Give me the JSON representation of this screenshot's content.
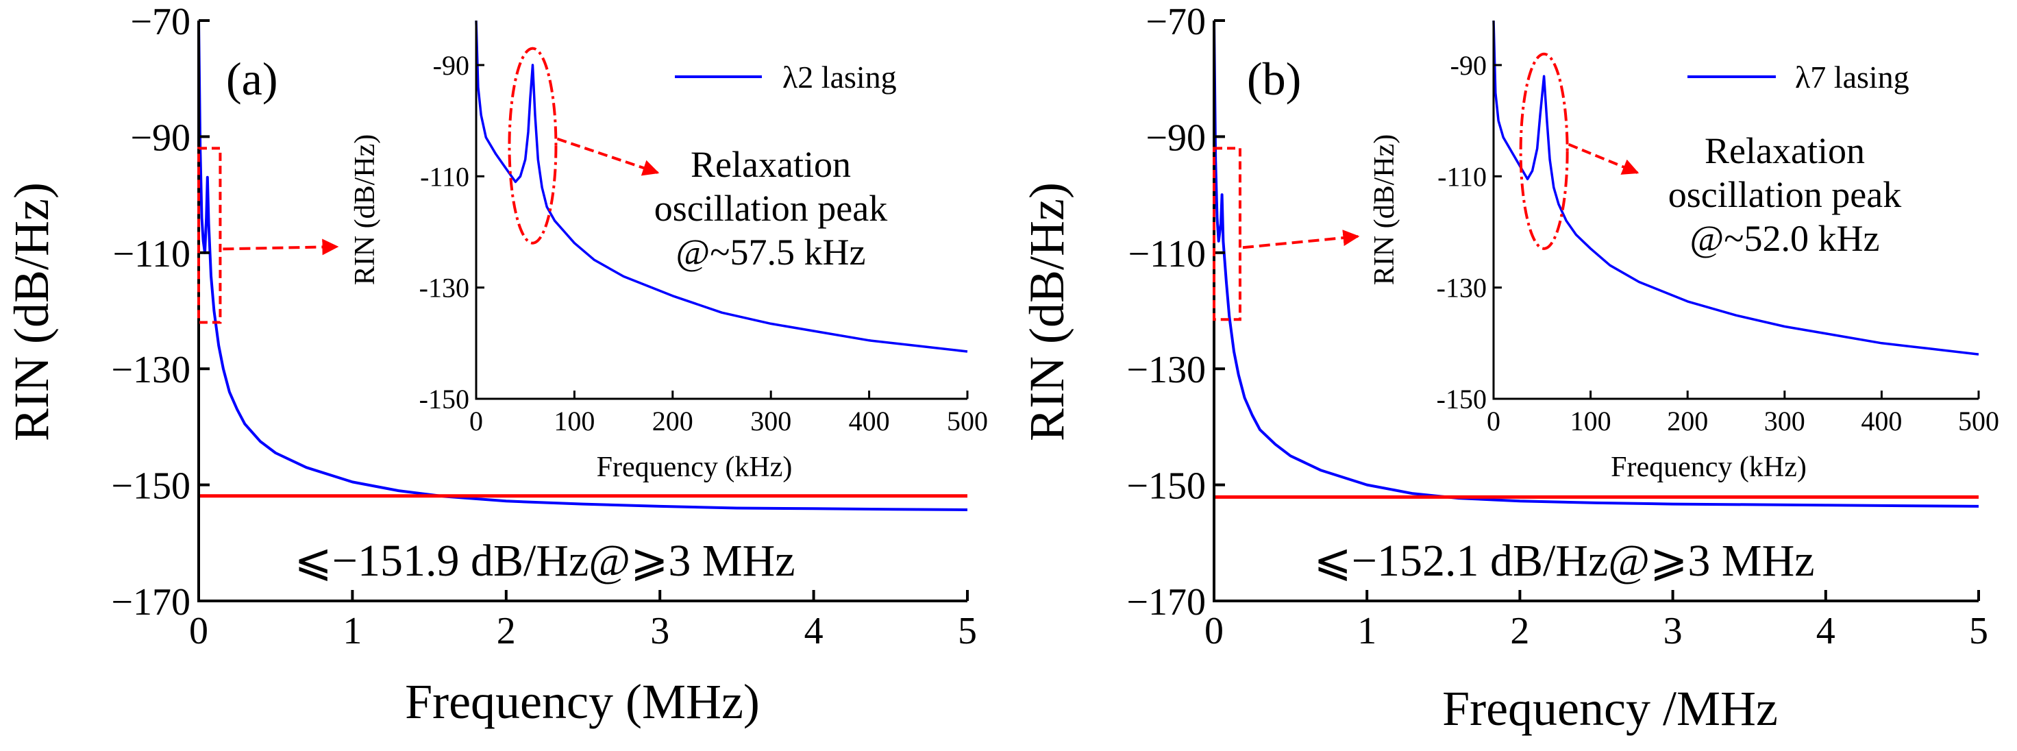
{
  "chart_data": [
    {
      "id": "a",
      "type": "line",
      "panel_label": "(a)",
      "xlabel": "Frequency (MHz)",
      "ylabel": "RIN (dB/Hz)",
      "xlim": [
        0,
        5
      ],
      "ylim": [
        -170,
        -70
      ],
      "x_ticks": [
        "0",
        "1",
        "2",
        "3",
        "4",
        "5"
      ],
      "y_ticks": [
        "−70",
        "−90",
        "−110",
        "−130",
        "−150",
        "−170"
      ],
      "x_tick_values": [
        0,
        1,
        2,
        3,
        4,
        5
      ],
      "y_tick_values": [
        -70,
        -90,
        -110,
        -130,
        -150,
        -170
      ],
      "series": [
        {
          "name": "RIN",
          "color": "#0000ff",
          "x": [
            0.0,
            0.01,
            0.02,
            0.03,
            0.04,
            0.05,
            0.057,
            0.065,
            0.08,
            0.1,
            0.13,
            0.16,
            0.2,
            0.25,
            0.3,
            0.4,
            0.5,
            0.7,
            1.0,
            1.3,
            1.6,
            2.0,
            2.5,
            3.0,
            3.5,
            4.0,
            4.5,
            5.0
          ],
          "y": [
            -70,
            -92,
            -104,
            -108,
            -110,
            -104,
            -97,
            -105,
            -114,
            -120,
            -126,
            -130,
            -134,
            -137,
            -139.5,
            -142.5,
            -144.5,
            -147,
            -149.5,
            -151,
            -152,
            -152.8,
            -153.3,
            -153.7,
            -154,
            -154.1,
            -154.2,
            -154.3
          ]
        }
      ],
      "threshold": {
        "value": -151.9,
        "color": "#ff0000"
      },
      "annotation": "⩽−151.9 dB/Hz@⩾3 MHz",
      "zoom_box": {
        "x": [
          0,
          0.14
        ],
        "y": [
          -122,
          -92
        ]
      },
      "inset": {
        "type": "line",
        "xlabel": "Frequency (kHz)",
        "ylabel": "RIN (dB/Hz)",
        "xlim": [
          0,
          500
        ],
        "ylim": [
          -150,
          -82
        ],
        "x_ticks": [
          "0",
          "100",
          "200",
          "300",
          "400",
          "500"
        ],
        "y_ticks": [
          "-90",
          "-110",
          "-130",
          "-150"
        ],
        "x_tick_values": [
          0,
          100,
          200,
          300,
          400,
          500
        ],
        "y_tick_values": [
          -90,
          -110,
          -130,
          -150
        ],
        "legend": "λ2 lasing",
        "series": [
          {
            "name": "λ2 lasing",
            "color": "#0000ff",
            "x": [
              0,
              2,
              5,
              10,
              20,
              30,
              40,
              45,
              50,
              53,
              55,
              57.5,
              60,
              63,
              67,
              72,
              80,
              90,
              100,
              120,
              150,
              200,
              250,
              300,
              350,
              400,
              450,
              500
            ],
            "y": [
              -82,
              -94,
              -99,
              -103,
              -106,
              -108.5,
              -111,
              -110,
              -107,
              -102,
              -96,
              -90,
              -99,
              -107,
              -112,
              -115.5,
              -118,
              -120,
              -122,
              -125,
              -128,
              -131.5,
              -134.5,
              -136.5,
              -138,
              -139.5,
              -140.5,
              -141.5
            ]
          }
        ],
        "peak_label": "Relaxation oscillation peak @~57.5 kHz",
        "peak_label_lines": [
          "Relaxation",
          "oscillation peak",
          "@~57.5 kHz"
        ],
        "peak_x": 57.5,
        "peak_ellipse": {
          "y": [
            -122,
            -87
          ]
        }
      }
    },
    {
      "id": "b",
      "type": "line",
      "panel_label": "(b)",
      "xlabel": "Frequency /MHz",
      "ylabel": "RIN (dB/Hz)",
      "xlim": [
        0,
        5
      ],
      "ylim": [
        -170,
        -70
      ],
      "x_ticks": [
        "0",
        "1",
        "2",
        "3",
        "4",
        "5"
      ],
      "y_ticks": [
        "−70",
        "−90",
        "−110",
        "−130",
        "−150",
        "−170"
      ],
      "x_tick_values": [
        0,
        1,
        2,
        3,
        4,
        5
      ],
      "y_tick_values": [
        -70,
        -90,
        -110,
        -130,
        -150,
        -170
      ],
      "series": [
        {
          "name": "RIN",
          "color": "#0000ff",
          "x": [
            0.0,
            0.01,
            0.02,
            0.03,
            0.045,
            0.052,
            0.06,
            0.08,
            0.1,
            0.13,
            0.16,
            0.2,
            0.25,
            0.3,
            0.4,
            0.5,
            0.7,
            1.0,
            1.3,
            1.6,
            2.0,
            2.5,
            3.0,
            3.5,
            4.0,
            4.5,
            5.0
          ],
          "y": [
            -70,
            -94,
            -104,
            -108,
            -105,
            -100,
            -108,
            -115,
            -121,
            -127,
            -131,
            -135,
            -138,
            -140.5,
            -143,
            -145,
            -147.5,
            -150,
            -151.5,
            -152.3,
            -152.8,
            -153.1,
            -153.3,
            -153.4,
            -153.5,
            -153.6,
            -153.7
          ]
        }
      ],
      "threshold": {
        "value": -152.1,
        "color": "#ff0000"
      },
      "annotation": "⩽−152.1 dB/Hz@⩾3 MHz",
      "zoom_box": {
        "x": [
          0,
          0.17
        ],
        "y": [
          -121.5,
          -92
        ]
      },
      "inset": {
        "type": "line",
        "xlabel": "Frequency (kHz)",
        "ylabel": "RIN (dB/Hz)",
        "xlim": [
          0,
          500
        ],
        "ylim": [
          -150,
          -82
        ],
        "x_ticks": [
          "0",
          "100",
          "200",
          "300",
          "400",
          "500"
        ],
        "y_ticks": [
          "-90",
          "-110",
          "-130",
          "-150"
        ],
        "x_tick_values": [
          0,
          100,
          200,
          300,
          400,
          500
        ],
        "y_tick_values": [
          -90,
          -110,
          -130,
          -150
        ],
        "legend": "λ7 lasing",
        "series": [
          {
            "name": "λ7 lasing",
            "color": "#0000ff",
            "x": [
              0,
              2,
              5,
              10,
              20,
              30,
              35,
              40,
              45,
              48,
              52,
              55,
              58,
              62,
              67,
              75,
              85,
              100,
              120,
              150,
              200,
              250,
              300,
              350,
              400,
              450,
              500
            ],
            "y": [
              -82,
              -95,
              -100,
              -103,
              -106,
              -109,
              -110.5,
              -109,
              -105,
              -99,
              -92,
              -100,
              -107,
              -112,
              -115,
              -118,
              -120.5,
              -123,
              -126,
              -129,
              -132.5,
              -135,
              -137,
              -138.5,
              -140,
              -141,
              -142
            ]
          }
        ],
        "peak_label": "Relaxation oscillation peak @~52.0 kHz",
        "peak_label_lines": [
          "Relaxation",
          "oscillation peak",
          "@~52.0 kHz"
        ],
        "peak_x": 52,
        "peak_ellipse": {
          "y": [
            -123,
            -88
          ]
        }
      }
    }
  ]
}
